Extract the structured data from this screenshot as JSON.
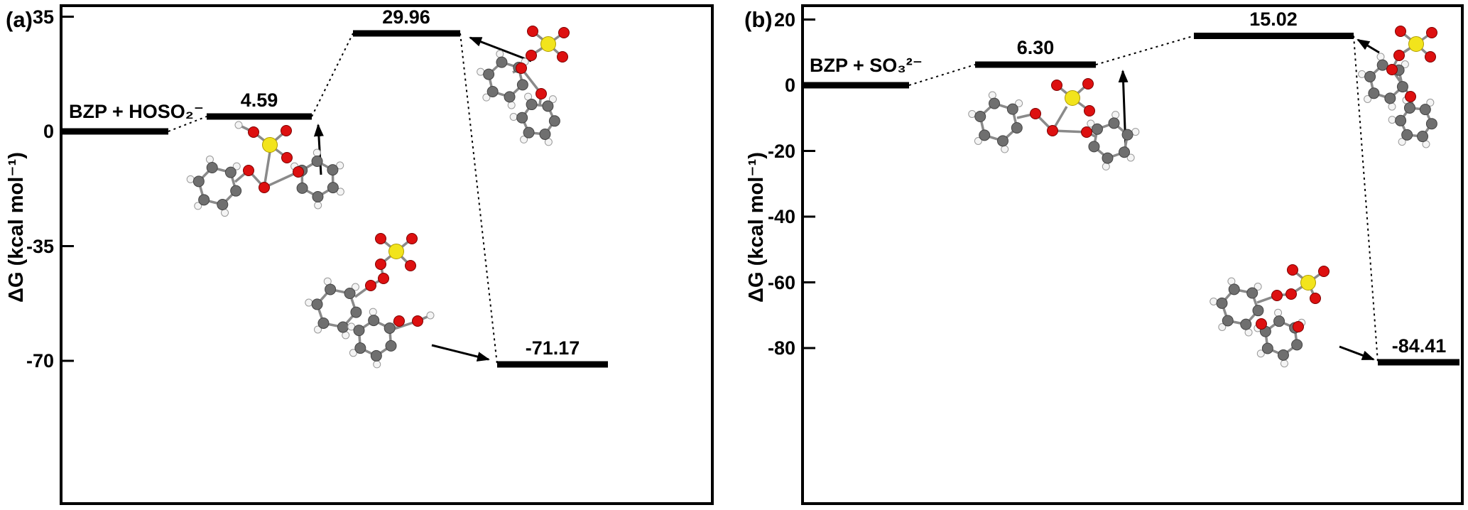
{
  "figure": {
    "description": "Gibbs free energy reaction profiles for benzoyl peroxide (BZP) reacting with sulfur nucleophiles",
    "background": "#ffffff",
    "molecule_colors": {
      "carbon": "#6f6f6f",
      "hydrogen": "#f4f4f4",
      "oxygen": "#dd1010",
      "sulfur": "#f2e41c",
      "bond": "#8a8a8a"
    }
  },
  "chart_data": [
    {
      "type": "line",
      "variant": "reaction-energy-profile",
      "panel_label": "(a)",
      "reactants_label": "BZP + HOSO₂⁻",
      "ylabel": "ΔG (kcal mol⁻¹)",
      "units": "kcal mol⁻¹",
      "ylim": [
        -76,
        38
      ],
      "yticks": [
        35,
        0,
        -35,
        -70
      ],
      "ytick_labels": [
        "35",
        "0",
        "-35",
        "-70"
      ],
      "connector_style": "dashed",
      "legend": "none",
      "levels": [
        {
          "name": "reactants",
          "energy": 0.0,
          "label": ""
        },
        {
          "name": "intermediate",
          "energy": 4.59,
          "label": "4.59"
        },
        {
          "name": "transition-state",
          "energy": 29.96,
          "label": "29.96"
        },
        {
          "name": "products",
          "energy": -71.17,
          "label": "-71.17"
        }
      ]
    },
    {
      "type": "line",
      "variant": "reaction-energy-profile",
      "panel_label": "(b)",
      "reactants_label": "BZP + SO₃²⁻",
      "ylabel": "ΔG (kcal mol⁻¹)",
      "units": "kcal mol⁻¹",
      "ylim": [
        -90,
        24
      ],
      "yticks": [
        20,
        0,
        -20,
        -40,
        -60,
        -80
      ],
      "ytick_labels": [
        "20",
        "0",
        "-20",
        "-40",
        "-60",
        "-80"
      ],
      "connector_style": "dashed",
      "legend": "none",
      "levels": [
        {
          "name": "reactants",
          "energy": 0.0,
          "label": ""
        },
        {
          "name": "intermediate",
          "energy": 6.3,
          "label": "6.30"
        },
        {
          "name": "transition-state",
          "energy": 15.02,
          "label": "15.02"
        },
        {
          "name": "products",
          "energy": -84.41,
          "label": "-84.41"
        }
      ]
    }
  ]
}
